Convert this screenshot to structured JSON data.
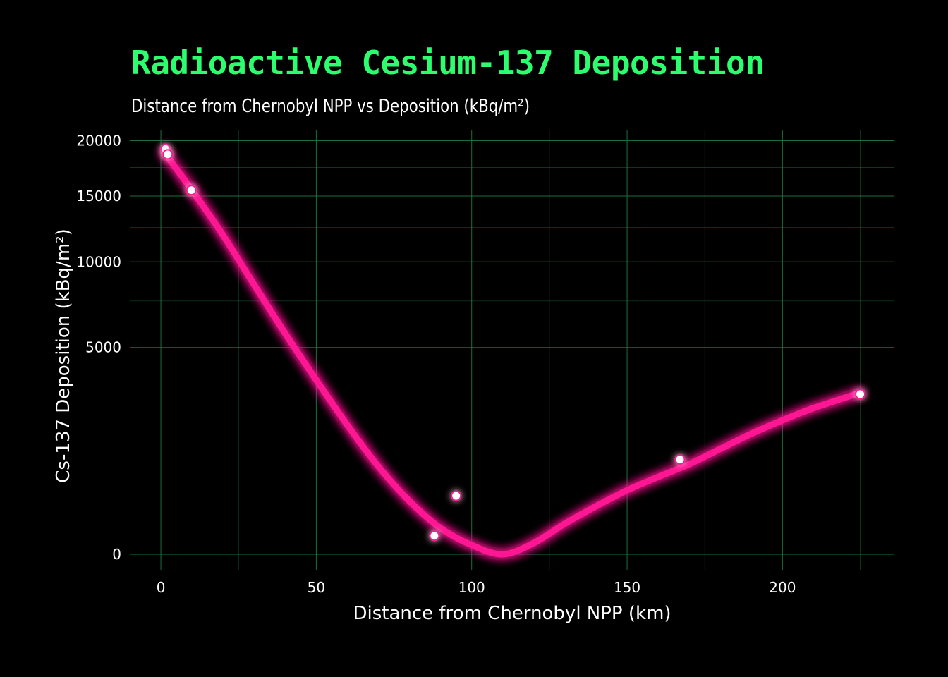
{
  "title": "Radioactive Cesium-137 Deposition",
  "subtitle": "Distance from Chernobyl NPP vs Deposition (kBq/m²)",
  "colors": {
    "background": "#000000",
    "title": "#2bff6e",
    "grid": "#1f7a45",
    "curve": "#ff1493",
    "points": "#ffffff",
    "text": "#ffffff"
  },
  "chart_data": {
    "type": "scatter",
    "title": "Radioactive Cesium-137 Deposition",
    "subtitle": "Distance from Chernobyl NPP vs Deposition (kBq/m²)",
    "xlabel": "Distance from Chernobyl NPP (km)",
    "ylabel": "Cs-137 Deposition (kBq/m²)",
    "y_scale": "sqrt",
    "xlim": [
      -10,
      236
    ],
    "ylim": [
      0,
      21000
    ],
    "x_ticks": [
      0,
      50,
      100,
      150,
      200
    ],
    "y_ticks": [
      0,
      5000,
      10000,
      15000,
      20000
    ],
    "x_tick_labels": [
      "0",
      "50",
      "100",
      "150",
      "200"
    ],
    "y_tick_labels": [
      "0",
      "5000",
      "10000",
      "15000",
      "20000"
    ],
    "grid": true,
    "legend": "none",
    "points": [
      {
        "x": 1.5,
        "y": 19200
      },
      {
        "x": 2.2,
        "y": 18700
      },
      {
        "x": 9.8,
        "y": 15500
      },
      {
        "x": 88,
        "y": 40
      },
      {
        "x": 95,
        "y": 400
      },
      {
        "x": 167,
        "y": 1050
      },
      {
        "x": 225,
        "y": 3000
      }
    ],
    "trend": {
      "x": [
        1,
        10,
        20,
        30,
        40,
        50,
        60,
        70,
        80,
        90,
        100,
        110,
        120,
        130,
        140,
        150,
        160,
        170,
        180,
        190,
        200,
        210,
        225
      ],
      "y": [
        18900,
        15500,
        11900,
        8500,
        5700,
        3550,
        1950,
        900,
        330,
        80,
        10,
        0,
        15,
        110,
        270,
        480,
        700,
        950,
        1300,
        1700,
        2100,
        2500,
        3050
      ]
    }
  }
}
